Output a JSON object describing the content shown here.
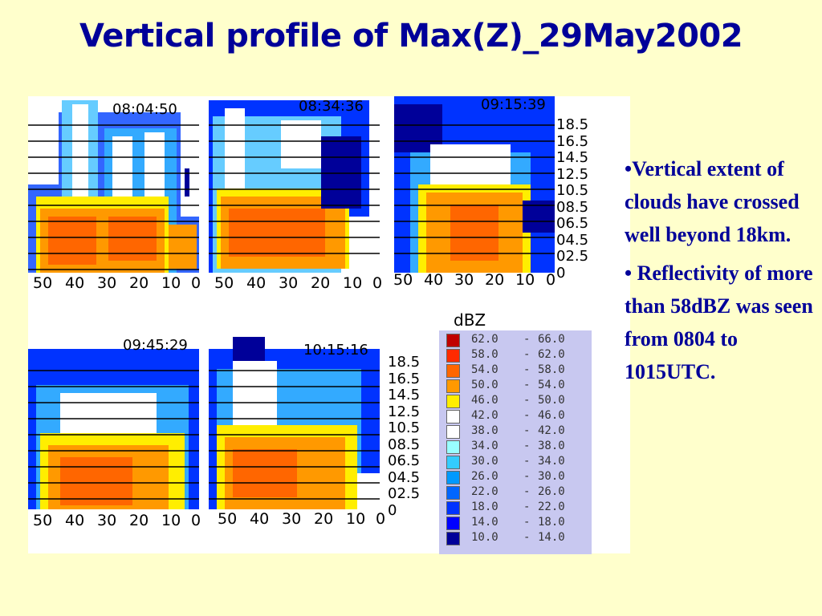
{
  "title": "Vertical profile of Max(Z)_29May2002",
  "panels": [
    {
      "time": "08:04:50"
    },
    {
      "time": "08:34:36"
    },
    {
      "time": "09:15:39"
    },
    {
      "time": "09:45:29"
    },
    {
      "time": "10:15:16"
    }
  ],
  "x_ticks": [
    "50",
    "40",
    "30",
    "20",
    "10",
    "0"
  ],
  "y_ticks": [
    "18.5",
    "16.5",
    "14.5",
    "12.5",
    "10.5",
    "08.5",
    "06.5",
    "04.5",
    "02.5",
    "0"
  ],
  "legend": {
    "title": "dBZ",
    "rows": [
      {
        "lo": "62.0",
        "hi": "66.0",
        "color": "#c00000"
      },
      {
        "lo": "58.0",
        "hi": "62.0",
        "color": "#ff2a00"
      },
      {
        "lo": "54.0",
        "hi": "58.0",
        "color": "#ff6600"
      },
      {
        "lo": "50.0",
        "hi": "54.0",
        "color": "#ff9900"
      },
      {
        "lo": "46.0",
        "hi": "50.0",
        "color": "#ffee00"
      },
      {
        "lo": "42.0",
        "hi": "46.0",
        "color": "#ffffff"
      },
      {
        "lo": "38.0",
        "hi": "42.0",
        "color": "#ffffff"
      },
      {
        "lo": "34.0",
        "hi": "38.0",
        "color": "#99ffff"
      },
      {
        "lo": "30.0",
        "hi": "34.0",
        "color": "#33ccff"
      },
      {
        "lo": "26.0",
        "hi": "30.0",
        "color": "#0099ff"
      },
      {
        "lo": "22.0",
        "hi": "26.0",
        "color": "#0066ff"
      },
      {
        "lo": "18.0",
        "hi": "22.0",
        "color": "#0033ff"
      },
      {
        "lo": "14.0",
        "hi": "18.0",
        "color": "#0000ff"
      },
      {
        "lo": "10.0",
        "hi": "14.0",
        "color": "#000099"
      }
    ],
    "dash": "-"
  },
  "bullets": [
    "•Vertical extent of clouds have crossed well beyond 18km.",
    "• Reflectivity of more than 58dBZ was seen from  0804 to 1015UTC."
  ]
}
